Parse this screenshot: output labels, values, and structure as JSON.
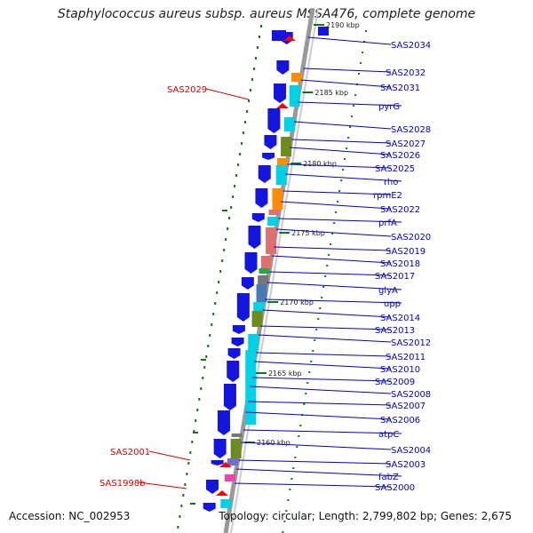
{
  "title": "Staphylococcus aureus subsp. aureus MSSA476, complete genome",
  "footer": {
    "accession": "Accession: NC_002953",
    "summary": "Topology: circular; Length: 2,799,802 bp; Genes: 2,675"
  },
  "colors": {
    "cds": "#1515e0",
    "trna": "#ff0000",
    "labelBlue": "#0000cc",
    "labelRed": "#dd0000",
    "cyan": "#00d2e6",
    "olive": "#6e8c1e",
    "orange": "#ff8c00",
    "salmon": "#e07070",
    "steel": "#4a7ab4",
    "green": "#22aa44",
    "gray": "#777777",
    "pink": "#ee44aa",
    "purple": "#7070cc",
    "backbone": "#999999",
    "dots": "#117711"
  },
  "kbp_ticks": [
    "2190 kbp",
    "2185 kbp",
    "2180 kbp",
    "2175 kbp",
    "2170 kbp",
    "2165 kbp",
    "2160 kbp"
  ],
  "gene_labels_right": [
    "SAS2034",
    "SAS2032",
    "SAS2031",
    "pyrG",
    "SAS2028",
    "SAS2027",
    "SAS2026",
    "SAS2025",
    "rho",
    "rpmE2",
    "SAS2022",
    "prfA",
    "SAS2020",
    "SAS2019",
    "SAS2018",
    "SAS2017",
    "glyA",
    "upp",
    "SAS2014",
    "SAS2013",
    "SAS2012",
    "SAS2011",
    "SAS2010",
    "SAS2009",
    "SAS2008",
    "SAS2007",
    "SAS2006",
    "atpC",
    "SAS2004",
    "SAS2003",
    "fabZ",
    "SAS2000"
  ],
  "gene_labels_left": [
    "SAS2029",
    "SAS2001",
    "SAS1998b"
  ]
}
